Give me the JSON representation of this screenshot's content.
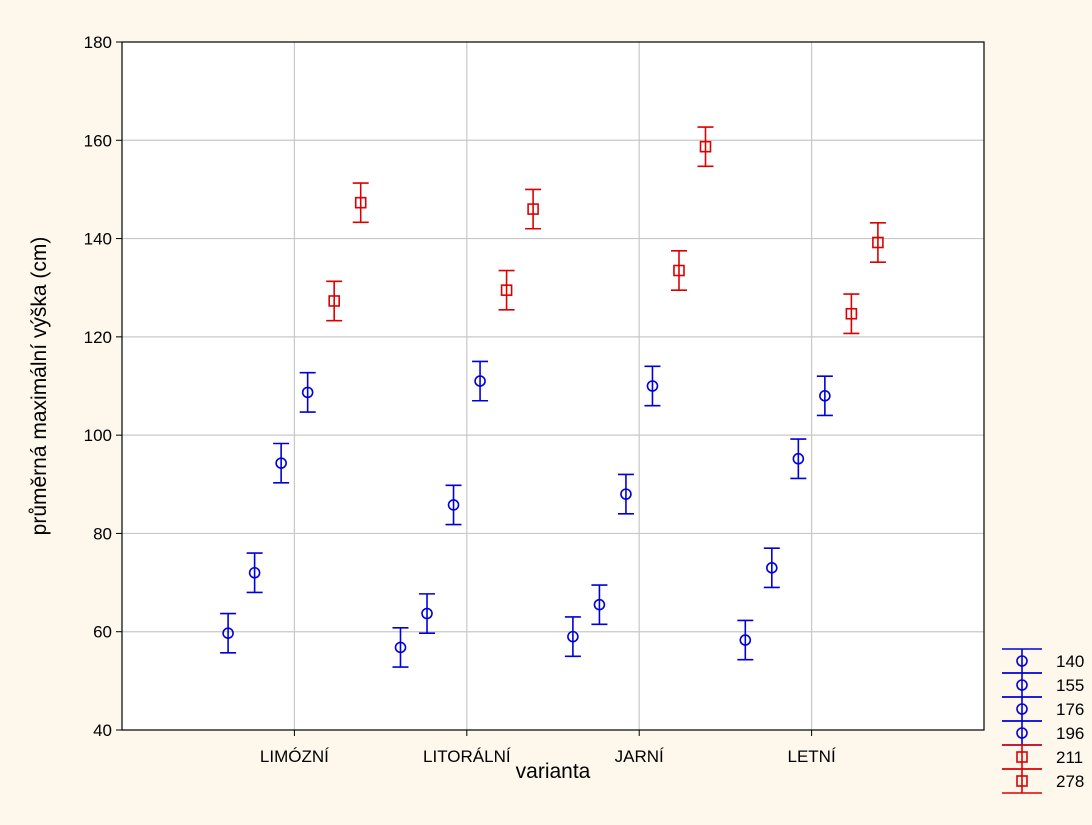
{
  "chart_data": {
    "type": "scatter",
    "title": "",
    "xlabel": "varianta",
    "ylabel": "průměrná maximální výška (cm)",
    "categories": [
      "LIMÓZNÍ",
      "LITORÁLNÍ",
      "JARNÍ",
      "LETNÍ"
    ],
    "ylim": [
      40,
      180
    ],
    "yticks": [
      40,
      60,
      80,
      100,
      120,
      140,
      160,
      180
    ],
    "grid": true,
    "legend_position": "bottom-right",
    "series": [
      {
        "name": "140",
        "marker": "circle",
        "color": "#0000dd",
        "values": [
          59.7,
          56.8,
          59.0,
          58.3
        ],
        "lower": [
          55.7,
          52.8,
          55.0,
          54.3
        ],
        "upper": [
          63.7,
          60.8,
          63.0,
          62.3
        ]
      },
      {
        "name": "155",
        "marker": "circle",
        "color": "#0000dd",
        "values": [
          72.0,
          63.7,
          65.5,
          73.0
        ],
        "lower": [
          68.0,
          59.7,
          61.5,
          69.0
        ],
        "upper": [
          76.0,
          67.7,
          69.5,
          77.0
        ]
      },
      {
        "name": "176",
        "marker": "circle",
        "color": "#0000dd",
        "values": [
          94.3,
          85.8,
          88.0,
          95.2
        ],
        "lower": [
          90.3,
          81.8,
          84.0,
          91.2
        ],
        "upper": [
          98.3,
          89.8,
          92.0,
          99.2
        ]
      },
      {
        "name": "196",
        "marker": "circle",
        "color": "#0000dd",
        "values": [
          108.7,
          111.0,
          110.0,
          108.0
        ],
        "lower": [
          104.7,
          107.0,
          106.0,
          104.0
        ],
        "upper": [
          112.7,
          115.0,
          114.0,
          112.0
        ]
      },
      {
        "name": "211",
        "marker": "square",
        "color": "#dd0000",
        "values": [
          127.3,
          129.5,
          133.5,
          124.7
        ],
        "lower": [
          123.3,
          125.5,
          129.5,
          120.7
        ],
        "upper": [
          131.3,
          133.5,
          137.5,
          128.7
        ]
      },
      {
        "name": "278",
        "marker": "square",
        "color": "#dd0000",
        "values": [
          147.3,
          146.0,
          158.7,
          139.2
        ],
        "lower": [
          143.3,
          142.0,
          154.7,
          135.2
        ],
        "upper": [
          151.3,
          150.0,
          162.7,
          143.2
        ]
      }
    ]
  }
}
